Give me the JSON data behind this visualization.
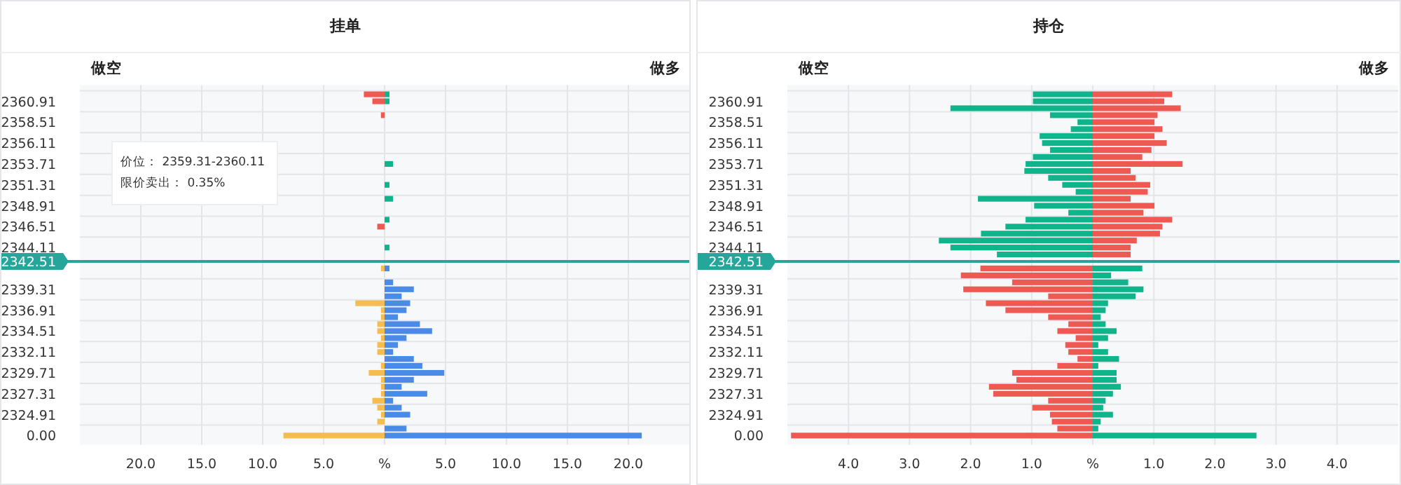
{
  "chart_data": [
    {
      "type": "bar",
      "orientation": "horizontal",
      "stacked": true,
      "title": "挂单",
      "grid": true,
      "categories": [
        null,
        "2360.91",
        null,
        null,
        "2358.51",
        null,
        null,
        "2356.11",
        null,
        null,
        "2353.71",
        null,
        null,
        "2351.31",
        null,
        null,
        "2348.91",
        null,
        null,
        "2346.51",
        null,
        null,
        "2344.11",
        null,
        "2342.51",
        null,
        null,
        null,
        "2339.31",
        null,
        null,
        "2336.91",
        null,
        null,
        "2334.51",
        null,
        null,
        "2332.11",
        null,
        null,
        "2329.71",
        null,
        null,
        "2327.31",
        null,
        null,
        "2324.91",
        null,
        null,
        "0.00"
      ],
      "series": [
        {
          "color": "#ee5a52",
          "values": [
            -1.7,
            -1.0,
            null,
            -0.3,
            null,
            null,
            null,
            null,
            null,
            null,
            null,
            null,
            null,
            null,
            null,
            null,
            null,
            null,
            null,
            -0.6,
            null,
            null,
            null,
            null,
            null,
            null,
            null,
            null,
            null,
            null,
            null,
            null,
            null,
            null,
            null,
            null,
            null,
            null,
            null,
            null,
            null,
            null,
            null,
            null,
            null,
            null,
            null,
            null,
            null,
            null
          ]
        },
        {
          "color": "#10b48a",
          "values": [
            0.4,
            0.4,
            null,
            null,
            null,
            null,
            null,
            null,
            null,
            null,
            0.7,
            null,
            null,
            0.4,
            null,
            0.7,
            null,
            null,
            0.4,
            null,
            null,
            null,
            0.4,
            null,
            null,
            null,
            null,
            null,
            null,
            null,
            null,
            null,
            null,
            null,
            null,
            null,
            null,
            null,
            null,
            null,
            null,
            null,
            null,
            null,
            null,
            null,
            null,
            null,
            null,
            null
          ]
        },
        {
          "color": "#f5bd4f",
          "values": [
            null,
            null,
            null,
            null,
            null,
            null,
            null,
            null,
            null,
            null,
            null,
            null,
            null,
            null,
            null,
            null,
            null,
            null,
            null,
            null,
            null,
            null,
            null,
            null,
            null,
            -0.3,
            null,
            null,
            null,
            null,
            -2.4,
            -0.3,
            -0.3,
            -0.6,
            -0.6,
            -0.3,
            -0.6,
            -0.6,
            null,
            -0.3,
            -1.3,
            -0.3,
            -0.3,
            -0.3,
            -1.0,
            -0.6,
            -0.3,
            -0.6,
            null,
            -8.3
          ]
        },
        {
          "color": "#4a8be8",
          "values": [
            null,
            null,
            null,
            null,
            null,
            null,
            null,
            null,
            null,
            null,
            null,
            null,
            null,
            null,
            null,
            null,
            null,
            null,
            null,
            null,
            null,
            null,
            null,
            null,
            null,
            0.4,
            null,
            0.7,
            2.4,
            1.4,
            2.1,
            1.8,
            1.1,
            2.9,
            3.9,
            1.8,
            1.1,
            0.7,
            2.4,
            3.1,
            4.9,
            2.4,
            1.4,
            3.5,
            0.7,
            1.4,
            2.1,
            null,
            1.8,
            21.1
          ]
        }
      ],
      "xlim": [
        -25,
        25
      ],
      "xticks": [
        {
          "value": -20,
          "label": "20.0"
        },
        {
          "value": -15,
          "label": "15.0"
        },
        {
          "value": -10,
          "label": "10.0"
        },
        {
          "value": -5,
          "label": "5.0"
        },
        {
          "value": 0,
          "label": "%"
        },
        {
          "value": 5,
          "label": "5.0"
        },
        {
          "value": 10,
          "label": "10.0"
        },
        {
          "value": 15,
          "label": "15.0"
        },
        {
          "value": 20,
          "label": "20.0"
        }
      ],
      "ref_lines": [
        {
          "axis": "y",
          "value": "2342.51",
          "color": "#26a69a"
        }
      ],
      "annotations": [
        "做空",
        "做多",
        "价位：  2359.31-2360.11",
        "限价卖出：        0.35%"
      ]
    },
    {
      "type": "bar",
      "orientation": "horizontal",
      "stacked": true,
      "title": "持仓",
      "grid": true,
      "categories": [
        null,
        "2360.91",
        null,
        null,
        "2358.51",
        null,
        null,
        "2356.11",
        null,
        null,
        "2353.71",
        null,
        null,
        "2351.31",
        null,
        null,
        "2348.91",
        null,
        null,
        "2346.51",
        null,
        null,
        "2344.11",
        null,
        "2342.51",
        null,
        null,
        null,
        "2339.31",
        null,
        null,
        "2336.91",
        null,
        null,
        "2334.51",
        null,
        null,
        "2332.11",
        null,
        null,
        "2329.71",
        null,
        null,
        "2327.31",
        null,
        null,
        "2324.91",
        null,
        null,
        "0.00"
      ],
      "series": [
        {
          "color": "#10b48a",
          "values": [
            -0.98,
            -0.98,
            -2.33,
            -0.7,
            -0.25,
            -0.36,
            -0.87,
            -0.83,
            -0.7,
            -0.98,
            -1.1,
            -1.12,
            -0.73,
            -0.5,
            -0.28,
            -1.88,
            -0.96,
            -0.4,
            -1.1,
            -1.43,
            -1.83,
            -2.52,
            -2.33,
            -1.57,
            null,
            0.81,
            0.3,
            0.58,
            0.83,
            0.7,
            0.25,
            0.21,
            0.13,
            0.21,
            0.39,
            0.25,
            0.09,
            0.25,
            0.43,
            0.09,
            0.39,
            0.39,
            0.46,
            0.33,
            0.21,
            0.17,
            0.33,
            0.13,
            0.09,
            2.68
          ]
        },
        {
          "color": "#ee5a52",
          "values": [
            1.3,
            1.17,
            1.44,
            1.06,
            1.01,
            1.14,
            1.01,
            1.21,
            0.96,
            0.81,
            1.47,
            0.62,
            0.7,
            0.94,
            0.9,
            0.62,
            1.01,
            0.83,
            1.3,
            1.14,
            1.1,
            0.72,
            0.62,
            0.62,
            null,
            -1.84,
            -2.16,
            -1.32,
            -2.12,
            -0.73,
            -1.75,
            -1.43,
            -0.73,
            -0.4,
            -0.58,
            -0.28,
            -0.45,
            -0.4,
            -0.25,
            -0.58,
            -1.32,
            -1.25,
            -1.7,
            -1.63,
            -0.73,
            -0.99,
            -0.7,
            -0.67,
            -0.58,
            -4.94
          ]
        }
      ],
      "xlim": [
        -5,
        5
      ],
      "xticks": [
        {
          "value": -4,
          "label": "4.0"
        },
        {
          "value": -3,
          "label": "3.0"
        },
        {
          "value": -2,
          "label": "2.0"
        },
        {
          "value": -1,
          "label": "1.0"
        },
        {
          "value": 0,
          "label": "%"
        },
        {
          "value": 1,
          "label": "1.0"
        },
        {
          "value": 2,
          "label": "2.0"
        },
        {
          "value": 3,
          "label": "3.0"
        },
        {
          "value": 4,
          "label": "4.0"
        }
      ],
      "ref_lines": [
        {
          "axis": "y",
          "value": "2342.51",
          "color": "#26a69a"
        }
      ],
      "annotations": [
        "做空",
        "做多"
      ]
    }
  ]
}
